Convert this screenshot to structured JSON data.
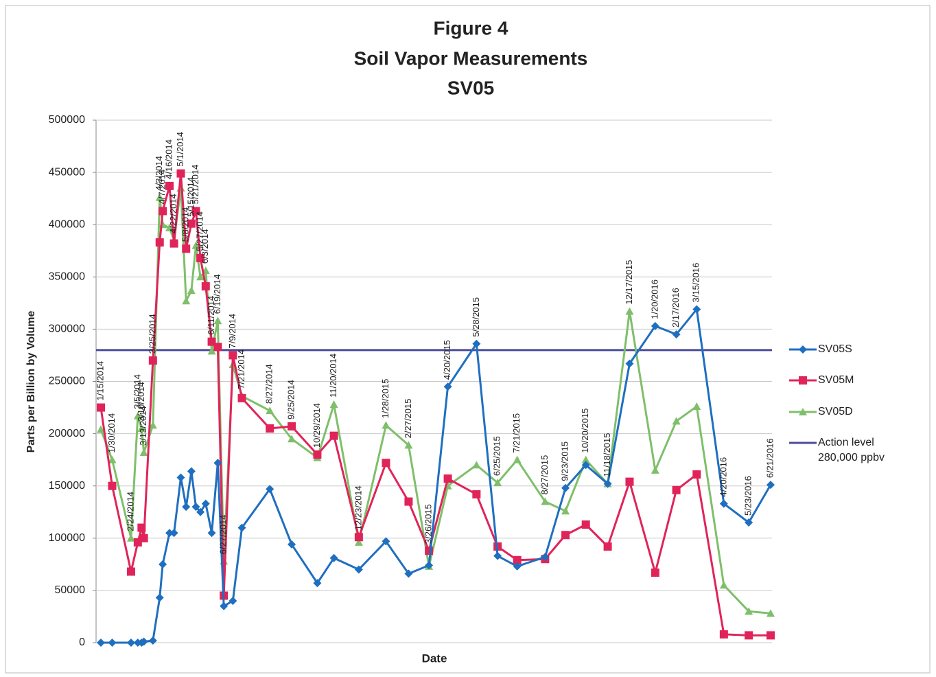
{
  "chart_data": {
    "type": "line",
    "title_lines": [
      "Figure 4",
      "Soil Vapor Measurements",
      "SV05"
    ],
    "y_label": "Parts per Billion by Volume",
    "x_label": "Date",
    "categories": [
      "1/15/2014",
      "1/30/2014",
      "2/24/2014",
      "3/5/2014",
      "3/10/2014",
      "3/13/2014",
      "3/25/2014",
      "4/3/2014",
      "4/7/2014",
      "4/16/2014",
      "4/22/2014",
      "5/1/2014",
      "5/8/2014",
      "5/15/2014",
      "5/21/2014",
      "5/27/2014",
      "6/3/2014",
      "6/11/2014",
      "6/19/2014",
      "6/27/2014",
      "7/9/2014",
      "7/21/2014",
      "8/27/2014",
      "9/25/2014",
      "10/29/2014",
      "11/20/2014",
      "12/23/2014",
      "1/28/2015",
      "2/27/2015",
      "3/26/2015",
      "4/20/2015",
      "5/28/2015",
      "6/25/2015",
      "7/21/2015",
      "8/27/2015",
      "9/23/2015",
      "10/20/2015",
      "11/18/2015",
      "12/17/2015",
      "1/20/2016",
      "2/17/2016",
      "3/15/2016",
      "4/20/2016",
      "5/23/2016",
      "6/21/2016"
    ],
    "series": [
      {
        "name": "SV05S",
        "color": "#1f6fc0",
        "marker": "diamond",
        "values": [
          0,
          0,
          0,
          0,
          0,
          1000,
          2000,
          43000,
          75000,
          105000,
          105000,
          158000,
          130000,
          164000,
          130000,
          125000,
          133000,
          105000,
          172000,
          35000,
          40000,
          110000,
          147000,
          94000,
          57000,
          81000,
          70000,
          97000,
          66000,
          74000,
          245000,
          286000,
          83000,
          73000,
          82000,
          148000,
          170000,
          152000,
          267000,
          303000,
          295000,
          319000,
          133000,
          115000,
          151000
        ]
      },
      {
        "name": "SV05M",
        "color": "#e0245a",
        "marker": "square",
        "values": [
          225000,
          150000,
          68000,
          96000,
          110000,
          100000,
          270000,
          383000,
          413000,
          437000,
          382000,
          449000,
          377000,
          401000,
          413000,
          368000,
          341000,
          288000,
          283000,
          45000,
          275000,
          234000,
          205000,
          207000,
          180000,
          198000,
          101000,
          172000,
          135000,
          88000,
          157000,
          142000,
          92000,
          79000,
          80000,
          103000,
          113000,
          92000,
          154000,
          67000,
          146000,
          161000,
          8000,
          7000,
          7000
        ]
      },
      {
        "name": "SV05D",
        "color": "#7fbf6a",
        "marker": "triangle",
        "values": [
          204000,
          175000,
          100000,
          217000,
          205000,
          182000,
          208000,
          426000,
          400000,
          397000,
          385000,
          435000,
          327000,
          337000,
          380000,
          350000,
          356000,
          279000,
          308000,
          78000,
          266000,
          236000,
          222000,
          195000,
          177000,
          228000,
          96000,
          208000,
          189000,
          73000,
          150000,
          170000,
          153000,
          175000,
          135000,
          126000,
          175000,
          152000,
          317000,
          165000,
          212000,
          226000,
          55000,
          30000,
          28000
        ]
      }
    ],
    "action_level": {
      "name": "Action level 280,000 ppbv",
      "color": "#4b4b9b",
      "value": 280000
    },
    "ylim": [
      0,
      500000
    ],
    "yticks": [
      0,
      50000,
      100000,
      150000,
      200000,
      250000,
      300000,
      350000,
      400000,
      450000,
      500000
    ],
    "grid": true
  }
}
